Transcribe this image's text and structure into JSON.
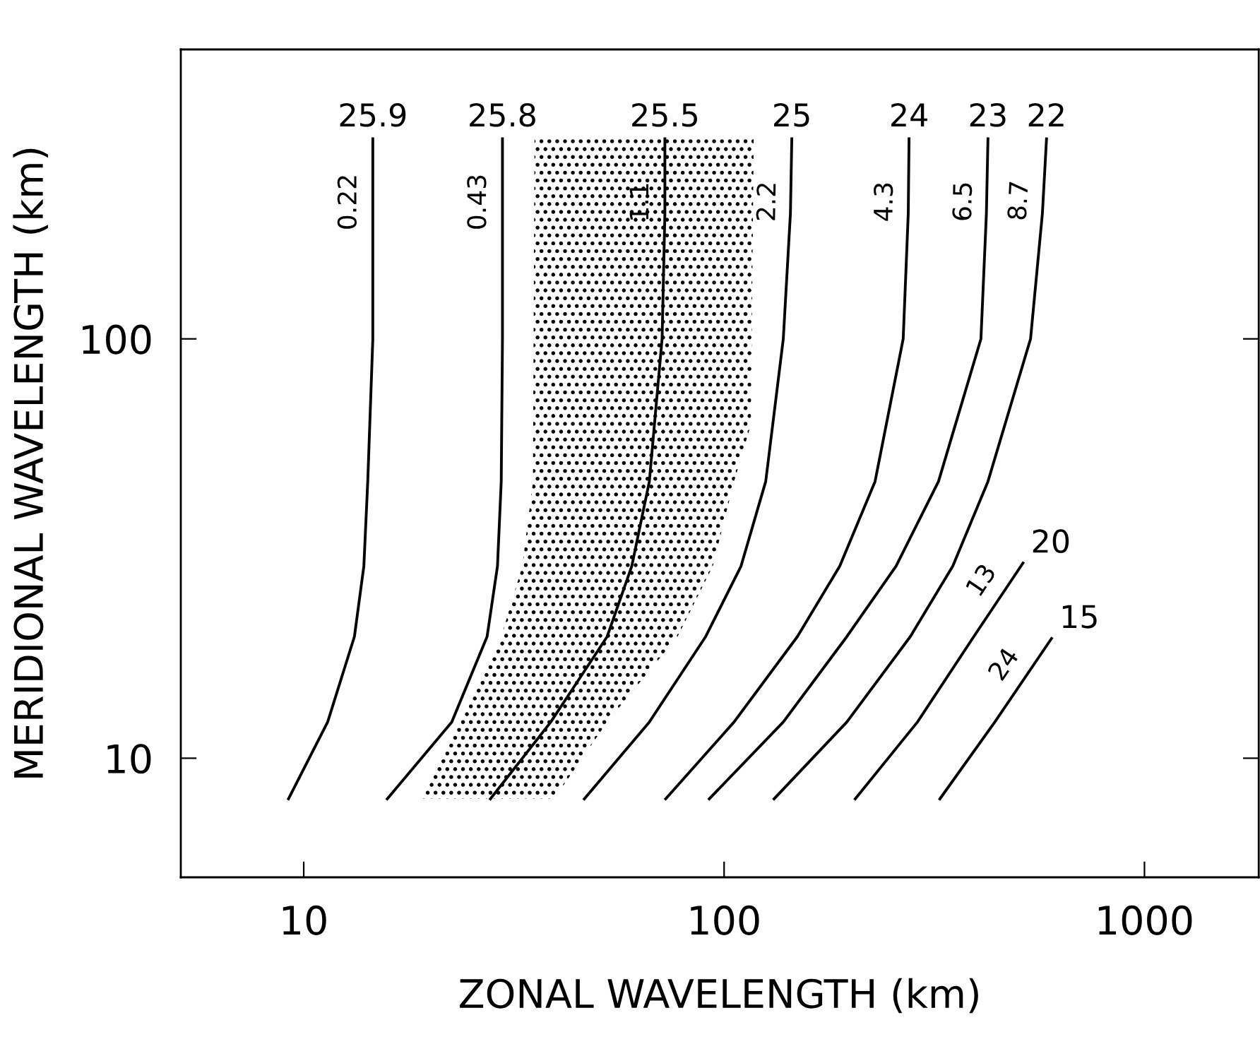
{
  "chart_data": {
    "type": "line",
    "xlabel": "ZONAL WAVELENGTH (km)",
    "ylabel": "MERIDIONAL WAVELENGTH (km)",
    "log": "xy",
    "xlim": [
      5.1,
      1870
    ],
    "ylim": [
      5.2,
      490
    ],
    "xticks": [
      10,
      100,
      1000
    ],
    "yticks": [
      10,
      100
    ],
    "grid": false,
    "marker": "none",
    "line_style": "solid",
    "series": [
      {
        "type": "area",
        "color": "#000000",
        "x": [
          18.9,
          23.4,
          29.5,
          33.1,
          35.1,
          35.4,
          117.6,
          115.8,
          105.6,
          94.0,
          77.5,
          52.7,
          39.4
        ],
        "values": [
          8.0,
          12.2,
          19.5,
          28.7,
          45.7,
          300,
          300,
          62.4,
          45.7,
          28.7,
          19.5,
          12.2,
          8.0
        ]
      },
      {
        "name": "25.9",
        "color": "#000000",
        "x": [
          9.2,
          11.4,
          13.2,
          13.9,
          14.2,
          14.6,
          14.6,
          14.6
        ],
        "values": [
          8.0,
          12.2,
          19.5,
          28.7,
          45.7,
          100,
          199,
          300
        ]
      },
      {
        "name": "25.8",
        "color": "#000000",
        "x": [
          15.8,
          22.5,
          27.3,
          28.9,
          29.5,
          29.7,
          29.7,
          29.7
        ],
        "values": [
          8.0,
          12.2,
          19.5,
          28.7,
          45.7,
          100,
          199,
          300
        ]
      },
      {
        "name": "25.5",
        "color": "#000000",
        "x": [
          27.8,
          38.7,
          52.7,
          60.3,
          66.4,
          71.2,
          72.3,
          72.3
        ],
        "values": [
          8.0,
          12.2,
          19.5,
          28.7,
          45.7,
          100,
          199,
          300
        ]
      },
      {
        "name": "25",
        "color": "#000000",
        "x": [
          46.5,
          66.4,
          90.4,
          109.7,
          125.6,
          138.3,
          143.8,
          144.9
        ],
        "values": [
          8.0,
          12.2,
          19.5,
          28.7,
          45.7,
          100,
          199,
          300
        ]
      },
      {
        "name": "24",
        "color": "#000000",
        "x": [
          72.6,
          105.6,
          149.4,
          188.4,
          228.6,
          266.7,
          274.2,
          275.4
        ],
        "values": [
          8.0,
          12.2,
          19.5,
          28.7,
          45.7,
          100,
          199,
          300
        ]
      },
      {
        "name": "23",
        "color": "#000000",
        "x": [
          92.2,
          138.3,
          195.9,
          256.4,
          323.6,
          408.3,
          420.7,
          424.3
        ],
        "values": [
          8.0,
          12.2,
          19.5,
          28.7,
          45.7,
          100,
          199,
          300
        ]
      },
      {
        "name": "22",
        "color": "#000000",
        "x": [
          131.5,
          195.9,
          277.3,
          349.9,
          424.3,
          535.8,
          571.7,
          584.8
        ],
        "values": [
          8.0,
          12.2,
          19.5,
          28.7,
          45.7,
          100,
          199,
          300
        ]
      },
      {
        "name": "20",
        "color": "#000000",
        "x": [
          205.1,
          288.4,
          392.6,
          514.0
        ],
        "values": [
          8.0,
          12.2,
          19.5,
          29.2
        ]
      },
      {
        "name": "15",
        "color": "#000000",
        "x": [
          326.1,
          440.6,
          601.1
        ],
        "values": [
          8.0,
          12.2,
          19.3
        ]
      }
    ],
    "annotations": [
      {
        "text": "0.22",
        "x": 14.6,
        "y": 212
      },
      {
        "text": "0.43",
        "x": 29.7,
        "y": 212
      },
      {
        "text": "1.1",
        "x": 72.3,
        "y": 212
      },
      {
        "text": "2.2",
        "x": 144.9,
        "y": 212
      },
      {
        "text": "4.3",
        "x": 275.4,
        "y": 212
      },
      {
        "text": "6.5",
        "x": 424.3,
        "y": 212
      },
      {
        "text": "8.7",
        "x": 575,
        "y": 212
      },
      {
        "text": "13",
        "x": 458,
        "y": 24.6
      },
      {
        "text": "24",
        "x": 518,
        "y": 15.5
      }
    ]
  }
}
